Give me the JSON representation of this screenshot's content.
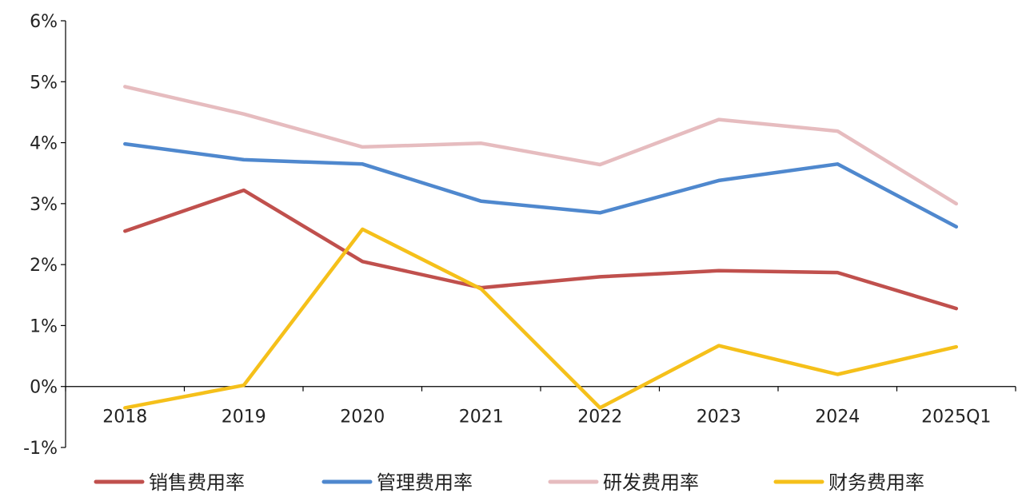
{
  "chart_data": {
    "type": "line",
    "title": "",
    "xlabel": "",
    "ylabel": "",
    "categories": [
      "2018",
      "2019",
      "2020",
      "2021",
      "2022",
      "2023",
      "2024",
      "2025Q1"
    ],
    "y_ticks": [
      "6%",
      "5%",
      "4%",
      "3%",
      "2%",
      "1%",
      "0%",
      "-1%"
    ],
    "y_tick_values": [
      6,
      5,
      4,
      3,
      2,
      1,
      0,
      -1
    ],
    "ylim": [
      -1,
      6
    ],
    "y_unit": "%",
    "grid": false,
    "legend_position": "bottom",
    "series": [
      {
        "name": "销售费用率",
        "color": "#C0504D",
        "values": [
          2.55,
          3.22,
          2.05,
          1.62,
          1.8,
          1.9,
          1.87,
          1.28
        ]
      },
      {
        "name": "管理费用率",
        "color": "#4F88CE",
        "values": [
          3.98,
          3.72,
          3.65,
          3.04,
          2.85,
          3.38,
          3.65,
          2.62
        ]
      },
      {
        "name": "研发费用率",
        "color": "#E6BCBF",
        "values": [
          4.92,
          4.47,
          3.93,
          3.99,
          3.64,
          4.38,
          4.19,
          3.0
        ]
      },
      {
        "name": "财务费用率",
        "color": "#F5C01A",
        "values": [
          -0.35,
          0.02,
          2.58,
          1.6,
          -0.35,
          0.67,
          0.2,
          0.65
        ]
      }
    ]
  }
}
